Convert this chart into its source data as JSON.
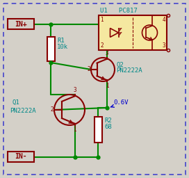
{
  "bg_color": "#d4d0c8",
  "border_color": "#4444cc",
  "wire_color": "#008800",
  "component_color": "#880000",
  "label_color": "#008888",
  "voltage_label_color": "#0000cc",
  "u1_fill": "#f5e8a0",
  "u1_label": "U1   PC817",
  "q1_label1": "Q1",
  "q1_label2": "PN2222A",
  "q2_label1": "Q2",
  "q2_label2": "PN2222A",
  "r1_label1": "R1",
  "r1_label2": "10k",
  "r2_label1": "R2",
  "r2_label2": "68",
  "voltage_label": "0.6V",
  "in_plus": "IN+",
  "in_minus": "IN-"
}
